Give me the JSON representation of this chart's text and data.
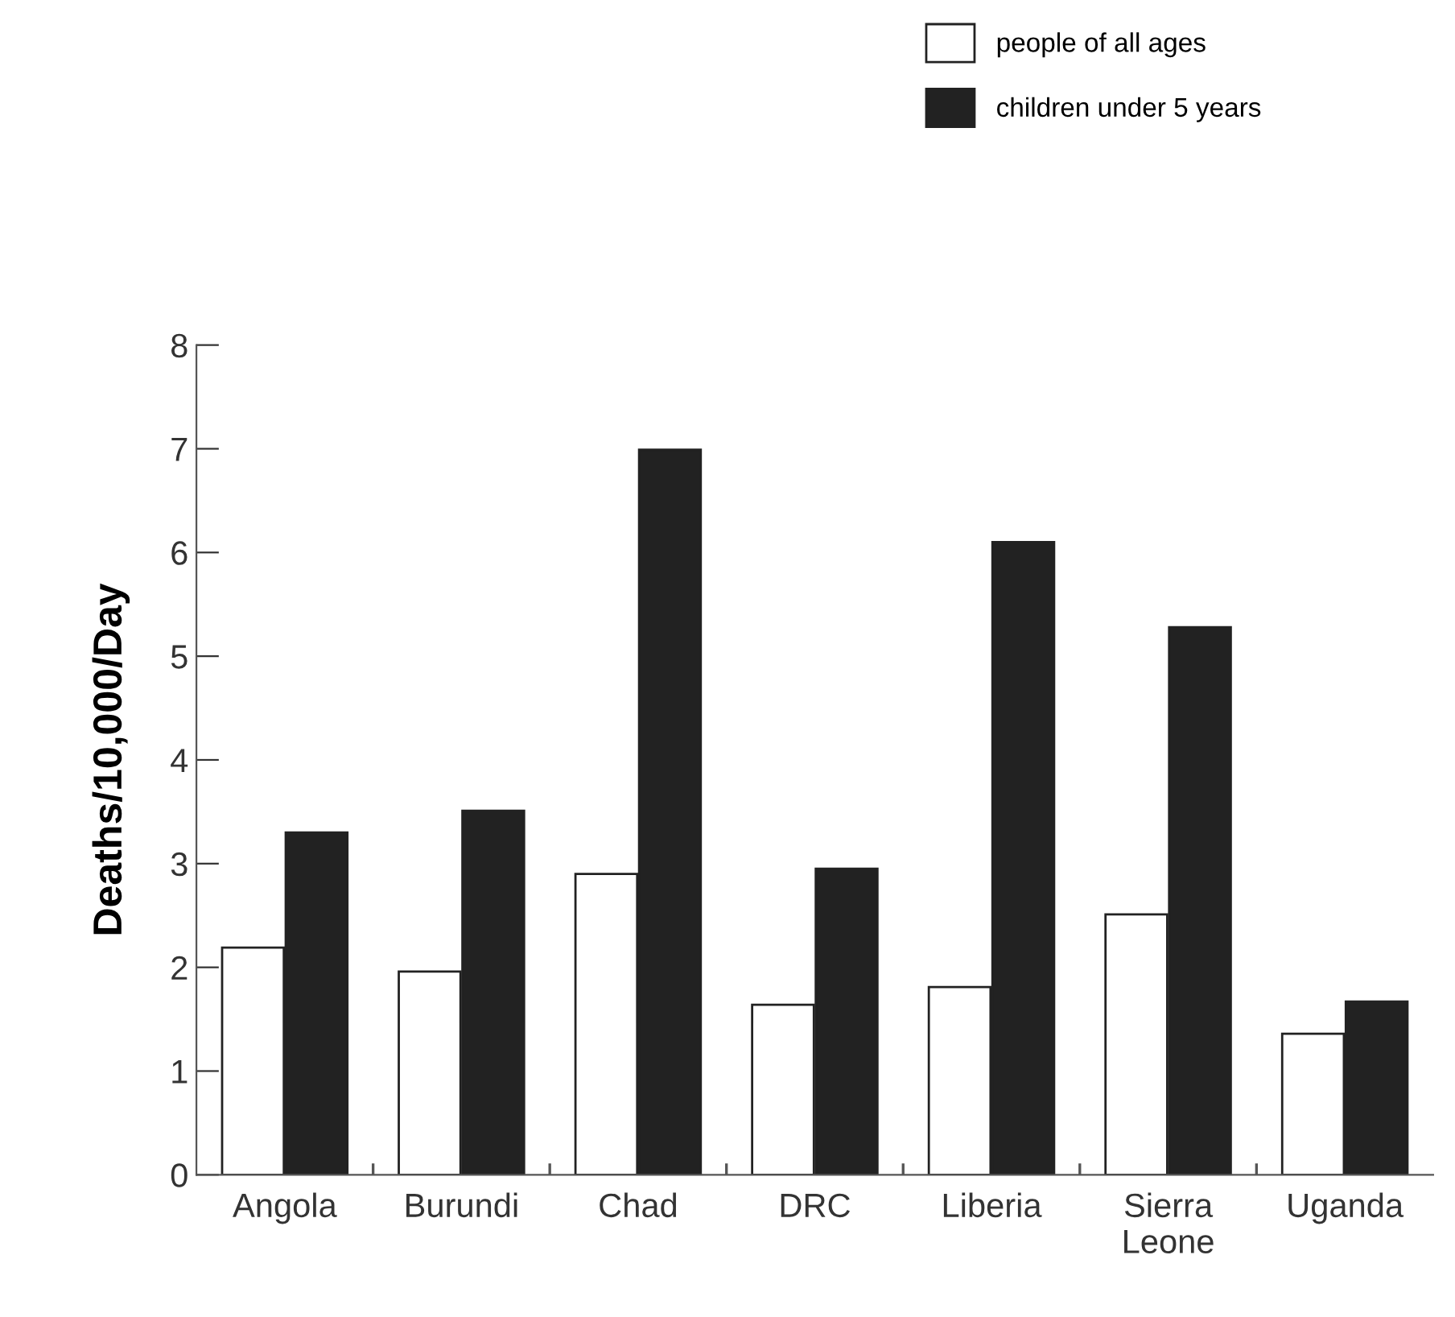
{
  "chart_data": {
    "type": "bar",
    "ylabel": "Deaths/10,000/Day",
    "categories": [
      "Angola",
      "Burundi",
      "Chad",
      "DRC",
      "Liberia",
      "Sierra Leone",
      "Uganda"
    ],
    "series": [
      {
        "name": "people of all ages",
        "color": "#ffffff",
        "values": [
          2.19,
          1.96,
          2.9,
          1.64,
          1.81,
          2.51,
          1.36
        ]
      },
      {
        "name": "children under 5 years",
        "color": "#222222",
        "values": [
          3.3,
          3.51,
          6.99,
          2.95,
          6.1,
          5.28,
          1.67
        ]
      }
    ],
    "ylim": [
      0,
      8
    ],
    "yticks": [
      0,
      1,
      2,
      3,
      4,
      5,
      6,
      7,
      8
    ],
    "legend": "top right",
    "grid": false
  }
}
